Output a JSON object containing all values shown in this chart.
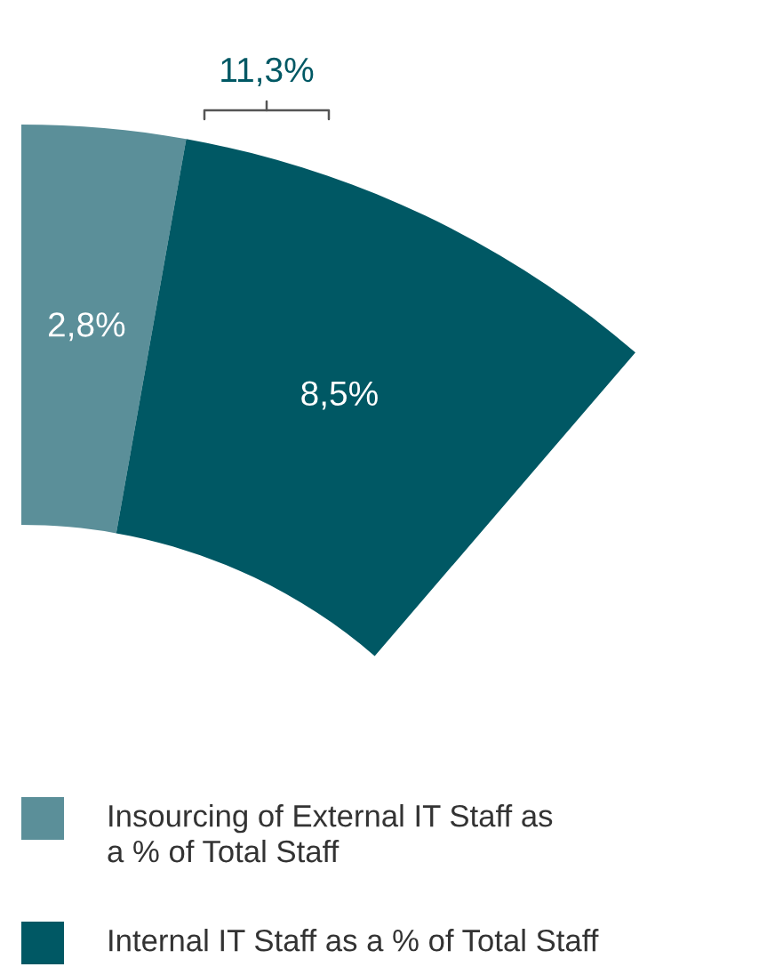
{
  "chart_data": {
    "type": "donut",
    "categories": [
      "Insourcing of External IT Staff as a % of Total Staff",
      "Internal IT Staff as a % of Total Staff"
    ],
    "values": [
      2.8,
      8.5
    ],
    "colors": [
      "#5b8f99",
      "#005864"
    ],
    "value_labels": [
      "2,8%",
      "8,5%"
    ],
    "annotations": [
      "11,3%"
    ],
    "legend": "bottom"
  }
}
